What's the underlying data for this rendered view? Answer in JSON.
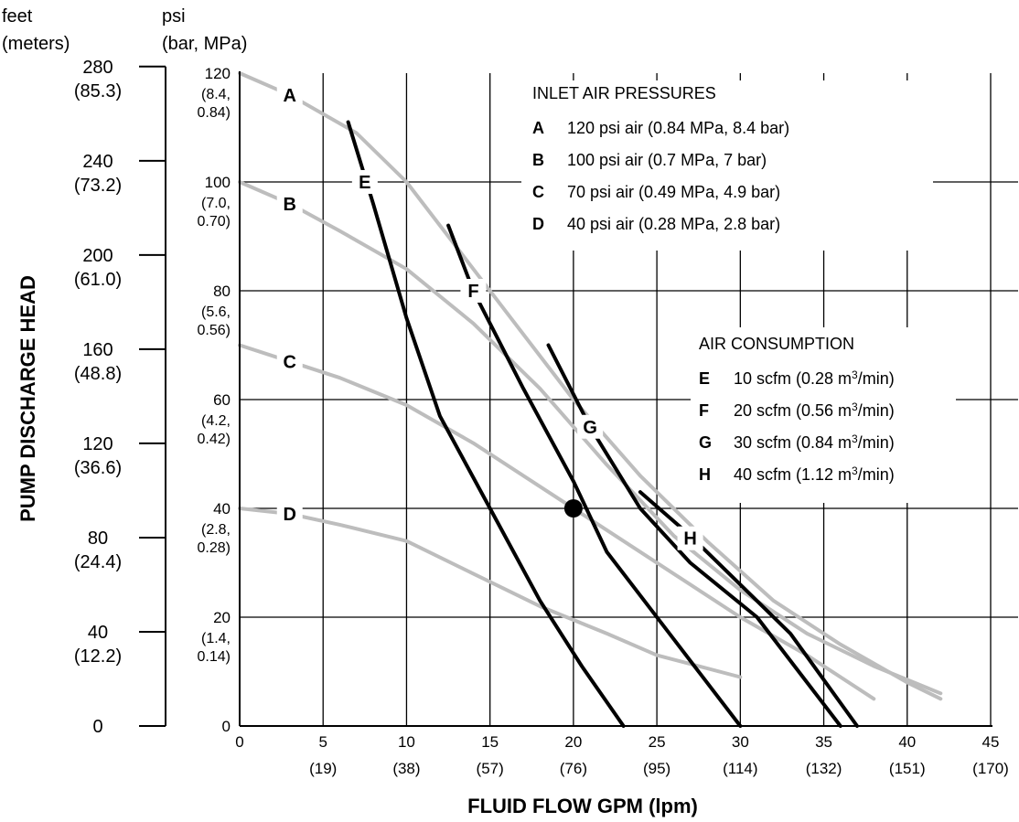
{
  "chart_data": {
    "type": "line",
    "title": "",
    "xlabel": "FLUID FLOW GPM (lpm)",
    "ylabel": "PUMP DISCHARGE HEAD",
    "xlim": [
      0,
      45
    ],
    "ylim": [
      0,
      120
    ],
    "grid": true,
    "x_ticks": [
      "0",
      "5",
      "10",
      "15",
      "20",
      "25",
      "30",
      "35",
      "40",
      "45"
    ],
    "x_ticks_lpm": [
      "(19)",
      "(38)",
      "(57)",
      "(76)",
      "(95)",
      "(114)",
      "(132)",
      "(151)",
      "(170)"
    ],
    "y_unit_psi": "psi",
    "y_unit_psi_sub": "(bar, MPa)",
    "y_unit_feet": "feet",
    "y_unit_feet_sub": "(meters)",
    "y_ticks_psi": [
      {
        "value": 0,
        "label": "0",
        "sub1": "",
        "sub2": ""
      },
      {
        "value": 20,
        "label": "20",
        "sub1": "(1.4,",
        "sub2": "0.14)"
      },
      {
        "value": 40,
        "label": "40",
        "sub1": "(2.8,",
        "sub2": "0.28)"
      },
      {
        "value": 60,
        "label": "60",
        "sub1": "(4.2,",
        "sub2": "0.42)"
      },
      {
        "value": 80,
        "label": "80",
        "sub1": "(5.6,",
        "sub2": "0.56)"
      },
      {
        "value": 100,
        "label": "100",
        "sub1": "(7.0,",
        "sub2": "0.70)"
      },
      {
        "value": 120,
        "label": "120",
        "sub1": "(8.4,",
        "sub2": "0.84)"
      }
    ],
    "y_ticks_feet": [
      {
        "feet": 0,
        "label": "0",
        "sub": ""
      },
      {
        "feet": 40,
        "label": "40",
        "sub": "(12.2)"
      },
      {
        "feet": 80,
        "label": "80",
        "sub": "(24.4)"
      },
      {
        "feet": 120,
        "label": "120",
        "sub": "(36.6)"
      },
      {
        "feet": 160,
        "label": "160",
        "sub": "(48.8)"
      },
      {
        "feet": 200,
        "label": "200",
        "sub": "(61.0)"
      },
      {
        "feet": 240,
        "label": "240",
        "sub": "(73.2)"
      },
      {
        "feet": 280,
        "label": "280",
        "sub": "(85.3)"
      }
    ],
    "legend_air_pressure": {
      "title": "INLET AIR PRESSURES",
      "items": [
        {
          "key": "A",
          "text": "120 psi air (0.84 MPa, 8.4 bar)"
        },
        {
          "key": "B",
          "text": "100 psi air (0.7 MPa, 7 bar)"
        },
        {
          "key": "C",
          "text": "70 psi air (0.49 MPa, 4.9 bar)"
        },
        {
          "key": "D",
          "text": "40 psi air (0.28 MPa, 2.8 bar)"
        }
      ]
    },
    "legend_air_consumption": {
      "title": "AIR CONSUMPTION",
      "items": [
        {
          "key": "E",
          "text": "10 scfm (0.28 m",
          "sup": "3",
          "tail": "/min)"
        },
        {
          "key": "F",
          "text": "20 scfm (0.56 m",
          "sup": "3",
          "tail": "/min)"
        },
        {
          "key": "G",
          "text": "30 scfm (0.84 m",
          "sup": "3",
          "tail": "/min)"
        },
        {
          "key": "H",
          "text": "40 scfm (1.12 m",
          "sup": "3",
          "tail": "/min)"
        }
      ]
    },
    "series": [
      {
        "name": "A",
        "kind": "pressure",
        "color": "#bdbdbd",
        "label_at": [
          3,
          116
        ],
        "points": [
          [
            0,
            120
          ],
          [
            3,
            116
          ],
          [
            7,
            109
          ],
          [
            10,
            100
          ],
          [
            13,
            88
          ],
          [
            16,
            76
          ],
          [
            20,
            60
          ],
          [
            24,
            46
          ],
          [
            28,
            34
          ],
          [
            32,
            23
          ],
          [
            36,
            15
          ],
          [
            40,
            8
          ],
          [
            42,
            5
          ]
        ]
      },
      {
        "name": "B",
        "kind": "pressure",
        "color": "#bdbdbd",
        "label_at": [
          3,
          96
        ],
        "points": [
          [
            0,
            100
          ],
          [
            3,
            96
          ],
          [
            6,
            91
          ],
          [
            10,
            84
          ],
          [
            14,
            74
          ],
          [
            18,
            62
          ],
          [
            22,
            48
          ],
          [
            26,
            35
          ],
          [
            30,
            25
          ],
          [
            34,
            17
          ],
          [
            38,
            11
          ],
          [
            42,
            6
          ]
        ]
      },
      {
        "name": "C",
        "kind": "pressure",
        "color": "#bdbdbd",
        "label_at": [
          3,
          67
        ],
        "points": [
          [
            0,
            70
          ],
          [
            3,
            67
          ],
          [
            6,
            64
          ],
          [
            10,
            59
          ],
          [
            14,
            52
          ],
          [
            18,
            44
          ],
          [
            22,
            36
          ],
          [
            26,
            28
          ],
          [
            30,
            20
          ],
          [
            34,
            13
          ],
          [
            38,
            5
          ]
        ]
      },
      {
        "name": "D",
        "kind": "pressure",
        "color": "#bdbdbd",
        "label_at": [
          3,
          39
        ],
        "points": [
          [
            0,
            40
          ],
          [
            3,
            39
          ],
          [
            6,
            37
          ],
          [
            10,
            34
          ],
          [
            14,
            28
          ],
          [
            18,
            22
          ],
          [
            22,
            17
          ],
          [
            25,
            13
          ],
          [
            30,
            9
          ]
        ]
      },
      {
        "name": "E",
        "kind": "consumption",
        "color": "#000000",
        "label_at": [
          7.5,
          100
        ],
        "points": [
          [
            6.5,
            111
          ],
          [
            8,
            96
          ],
          [
            10,
            75
          ],
          [
            12,
            57
          ],
          [
            15,
            40
          ],
          [
            18,
            23
          ],
          [
            20.5,
            11
          ],
          [
            23,
            0
          ]
        ]
      },
      {
        "name": "F",
        "kind": "consumption",
        "color": "#000000",
        "label_at": [
          14,
          80
        ],
        "points": [
          [
            12.5,
            92
          ],
          [
            14,
            80
          ],
          [
            17,
            62
          ],
          [
            20,
            45
          ],
          [
            22,
            32
          ],
          [
            26,
            16
          ],
          [
            30,
            0
          ]
        ]
      },
      {
        "name": "G",
        "kind": "consumption",
        "color": "#000000",
        "label_at": [
          21,
          55
        ],
        "points": [
          [
            18.5,
            70
          ],
          [
            21,
            55
          ],
          [
            24,
            40
          ],
          [
            27,
            30
          ],
          [
            31,
            20
          ],
          [
            36,
            0
          ]
        ]
      },
      {
        "name": "H",
        "kind": "consumption",
        "color": "#000000",
        "label_at": [
          27,
          34.5
        ],
        "points": [
          [
            24,
            43
          ],
          [
            27,
            35
          ],
          [
            30,
            26
          ],
          [
            33,
            17
          ],
          [
            37,
            0
          ]
        ]
      }
    ],
    "marker": {
      "x": 20,
      "y": 40
    }
  }
}
